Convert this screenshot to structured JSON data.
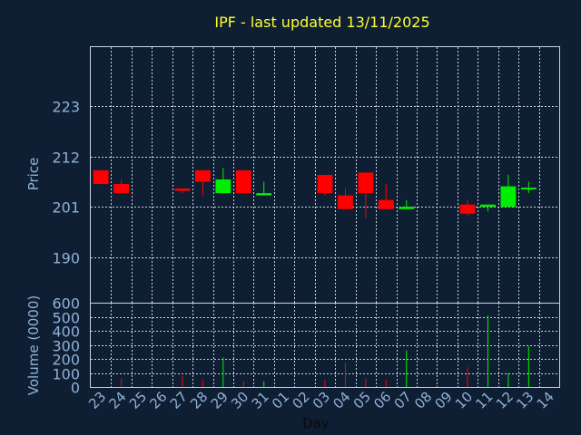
{
  "chart_data": [
    {
      "type": "candlestick",
      "title": "IPF - last updated 13/11/2025",
      "ylabel": "Price",
      "ylim": [
        180,
        236
      ],
      "yticks": [
        190,
        201,
        212,
        223
      ],
      "grid": true,
      "colors": {
        "up": "#00ee00",
        "down": "#ff0000",
        "background": "#0f1f33",
        "text": "#8fb0d8",
        "title": "#ffff33"
      },
      "categories": [
        "23",
        "24",
        "25",
        "26",
        "27",
        "28",
        "29",
        "30",
        "31",
        "01",
        "02",
        "03",
        "04",
        "05",
        "06",
        "07",
        "08",
        "09",
        "10",
        "11",
        "12",
        "13",
        "14"
      ],
      "candles": [
        {
          "day": "23",
          "open": 209,
          "high": 209,
          "low": 206,
          "close": 206
        },
        {
          "day": "24",
          "open": 206,
          "high": 207,
          "low": 204,
          "close": 204
        },
        {
          "day": "27",
          "open": 205,
          "high": 205,
          "low": 204,
          "close": 204.5
        },
        {
          "day": "28",
          "open": 209,
          "high": 209,
          "low": 203.5,
          "close": 206.5
        },
        {
          "day": "29",
          "open": 204,
          "high": 209.5,
          "low": 204,
          "close": 207
        },
        {
          "day": "30",
          "open": 209,
          "high": 209,
          "low": 204,
          "close": 204
        },
        {
          "day": "31",
          "open": 203.5,
          "high": 206.5,
          "low": 203.5,
          "close": 204
        },
        {
          "day": "03",
          "open": 208,
          "high": 208,
          "low": 203.5,
          "close": 204
        },
        {
          "day": "04",
          "open": 203.5,
          "high": 205,
          "low": 200.5,
          "close": 200.5
        },
        {
          "day": "05",
          "open": 208.5,
          "high": 208.5,
          "low": 198.5,
          "close": 204
        },
        {
          "day": "06",
          "open": 202.5,
          "high": 206,
          "low": 200.5,
          "close": 200.5
        },
        {
          "day": "07",
          "open": 200.5,
          "high": 202.5,
          "low": 200.5,
          "close": 201
        },
        {
          "day": "10",
          "open": 201.5,
          "high": 202.5,
          "low": 199,
          "close": 199.5
        },
        {
          "day": "11",
          "open": 201,
          "high": 201.5,
          "low": 200,
          "close": 201.5
        },
        {
          "day": "12",
          "open": 201,
          "high": 208,
          "low": 201,
          "close": 205.5
        },
        {
          "day": "13",
          "open": 205,
          "high": 206.5,
          "low": 204,
          "close": 205.2
        }
      ]
    },
    {
      "type": "bar",
      "ylabel": "Volume (0000)",
      "xlabel": "Day",
      "ylim": [
        0,
        600
      ],
      "yticks": [
        0,
        100,
        200,
        300,
        400,
        500,
        600
      ],
      "grid": true,
      "categories": [
        "23",
        "24",
        "25",
        "26",
        "27",
        "28",
        "29",
        "30",
        "31",
        "01",
        "02",
        "03",
        "04",
        "05",
        "06",
        "07",
        "08",
        "09",
        "10",
        "11",
        "12",
        "13",
        "14"
      ],
      "bars": [
        {
          "day": "24",
          "value": 60,
          "direction": "down"
        },
        {
          "day": "27",
          "value": 80,
          "direction": "down"
        },
        {
          "day": "28",
          "value": 50,
          "direction": "down"
        },
        {
          "day": "29",
          "value": 210,
          "direction": "up"
        },
        {
          "day": "30",
          "value": 40,
          "direction": "down"
        },
        {
          "day": "31",
          "value": 40,
          "direction": "up"
        },
        {
          "day": "03",
          "value": 50,
          "direction": "down"
        },
        {
          "day": "04",
          "value": 170,
          "direction": "down"
        },
        {
          "day": "05",
          "value": 60,
          "direction": "down"
        },
        {
          "day": "06",
          "value": 50,
          "direction": "down"
        },
        {
          "day": "07",
          "value": 260,
          "direction": "up"
        },
        {
          "day": "10",
          "value": 140,
          "direction": "down"
        },
        {
          "day": "11",
          "value": 510,
          "direction": "up"
        },
        {
          "day": "12",
          "value": 100,
          "direction": "up"
        },
        {
          "day": "13",
          "value": 290,
          "direction": "up"
        }
      ]
    }
  ]
}
